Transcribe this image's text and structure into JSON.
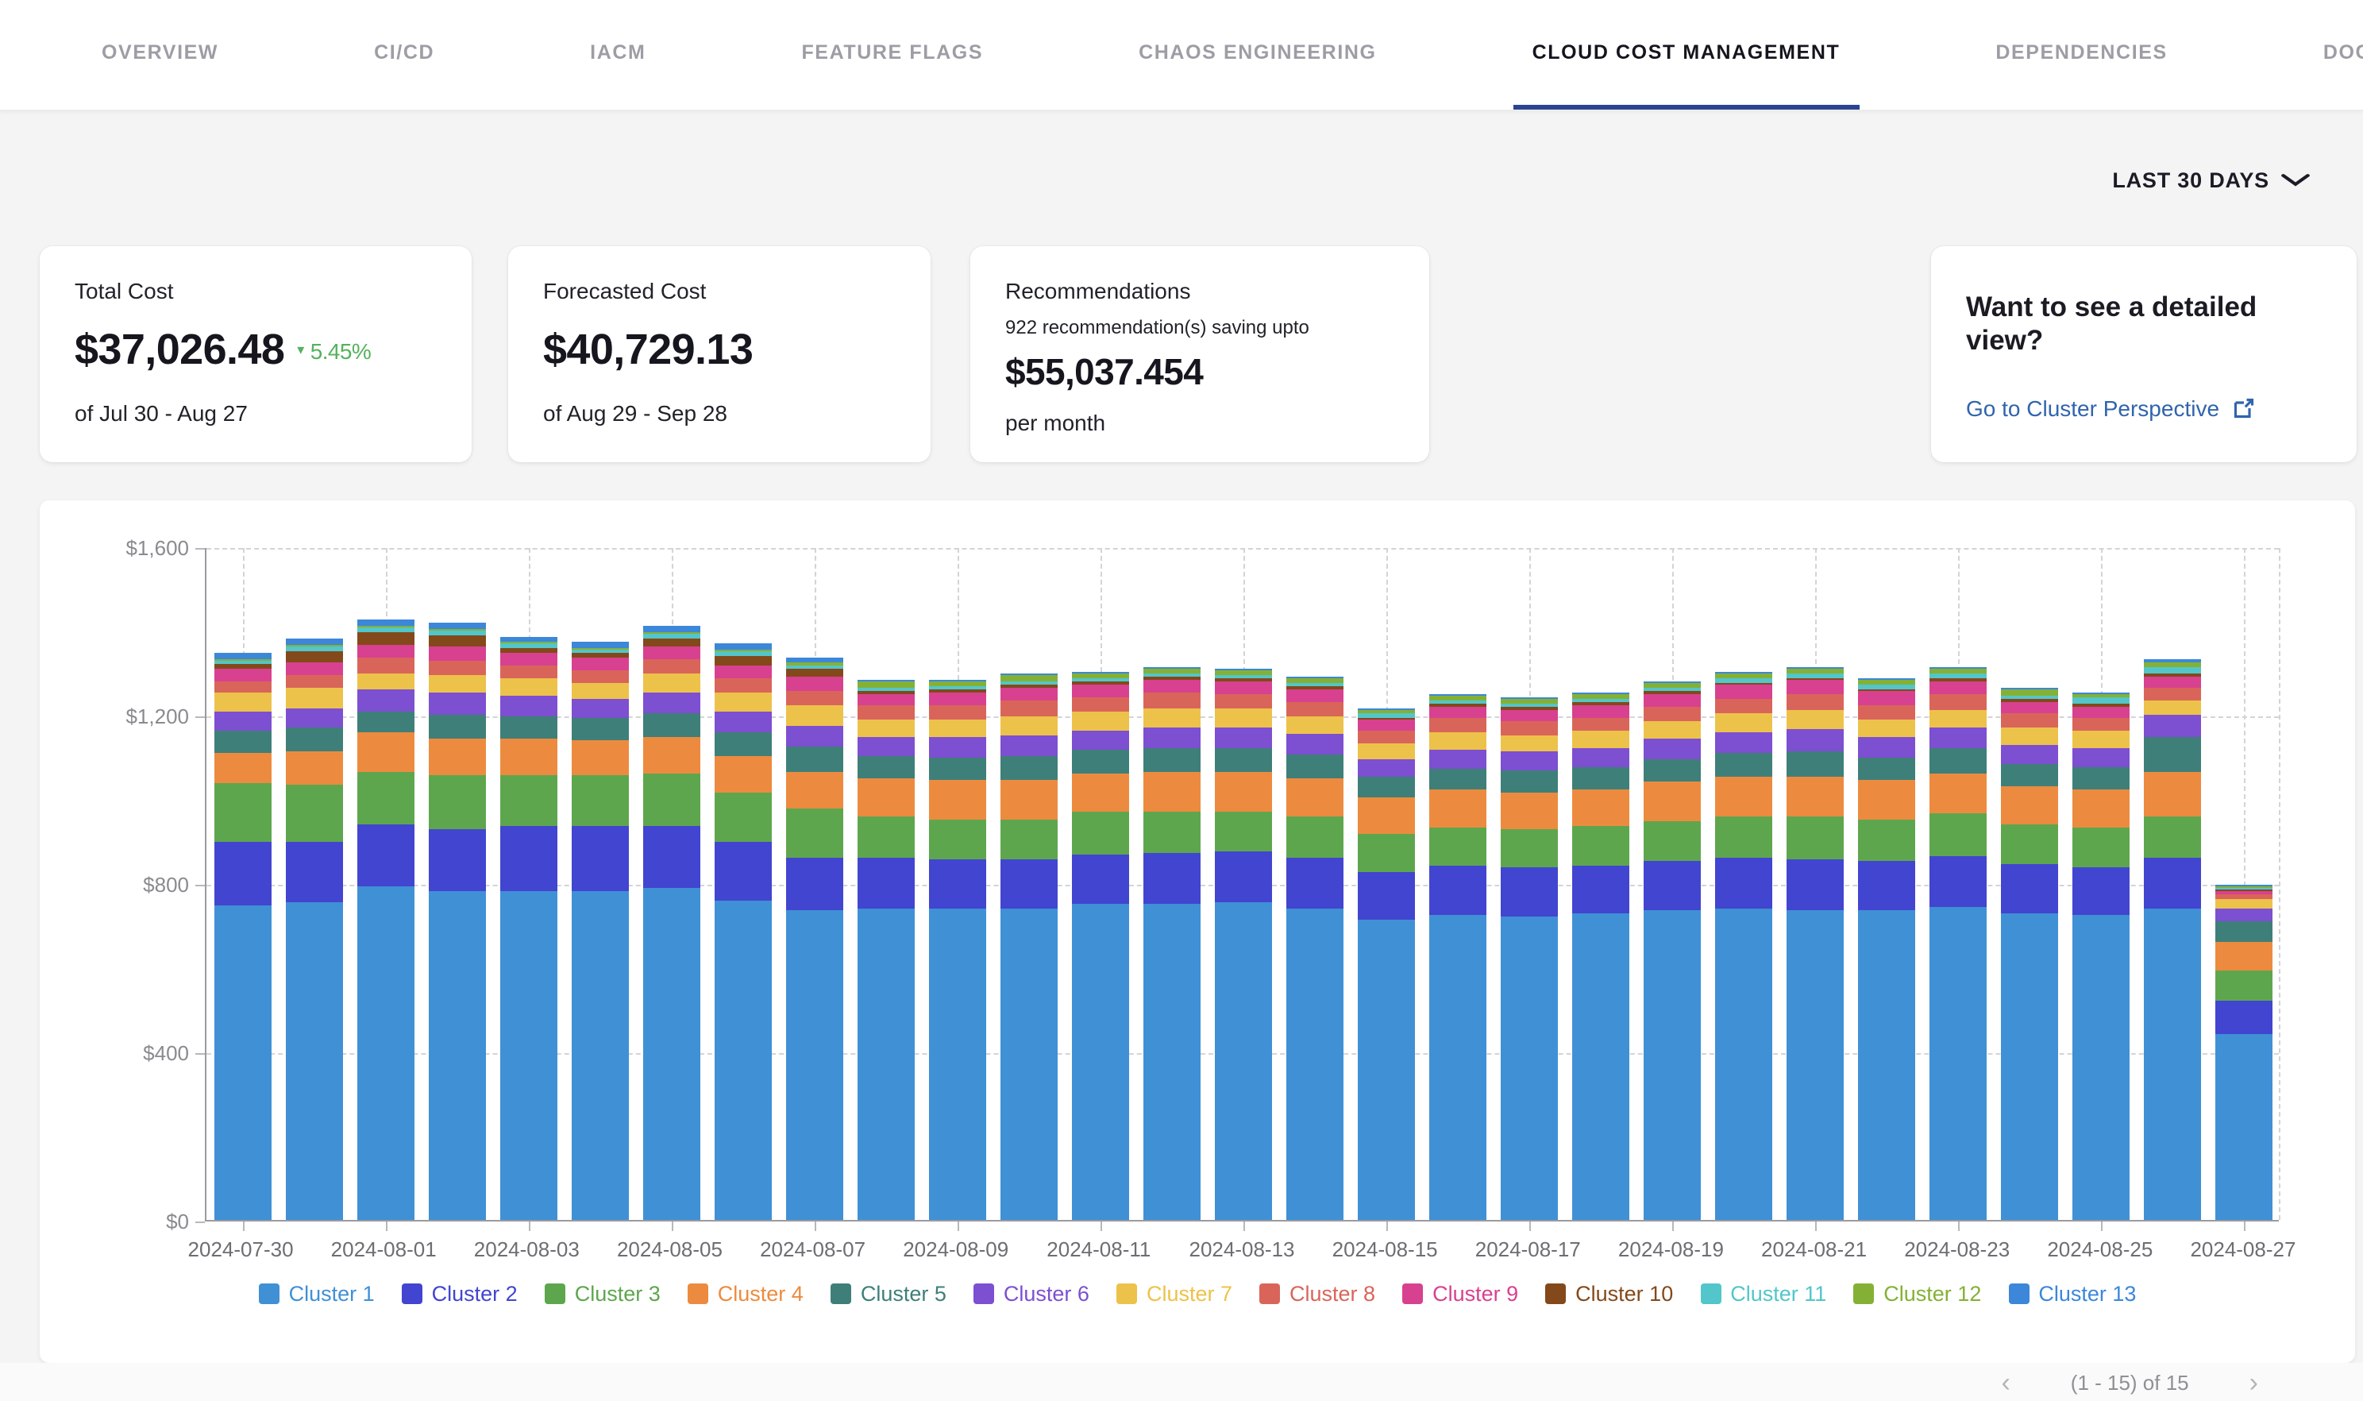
{
  "nav": {
    "tabs": [
      {
        "label": "OVERVIEW",
        "active": false
      },
      {
        "label": "CI/CD",
        "active": false
      },
      {
        "label": "IACM",
        "active": false
      },
      {
        "label": "FEATURE FLAGS",
        "active": false
      },
      {
        "label": "CHAOS ENGINEERING",
        "active": false
      },
      {
        "label": "CLOUD COST MANAGEMENT",
        "active": true
      },
      {
        "label": "DEPENDENCIES",
        "active": false
      },
      {
        "label": "DOCS",
        "active": false
      }
    ]
  },
  "filters": {
    "date_range_label": "LAST 30 DAYS",
    "chevron_icon": "⌄"
  },
  "cards": {
    "total_cost": {
      "label": "Total Cost",
      "value": "$37,026.48",
      "delta": "5.45%",
      "delta_direction": "down",
      "delta_color": "#55b25c",
      "period": "of Jul 30 - Aug 27"
    },
    "forecasted_cost": {
      "label": "Forecasted Cost",
      "value": "$40,729.13",
      "period": "of Aug 29 - Sep 28"
    },
    "recommendations": {
      "label": "Recommendations",
      "note": "922 recommendation(s) saving upto",
      "value": "$55,037.454",
      "suffix": "per month"
    },
    "detail_view": {
      "title": "Want to see a detailed view?",
      "link_label": "Go to Cluster Perspective",
      "link_color": "#3064ad"
    }
  },
  "chart_data": {
    "type": "bar",
    "stacked": true,
    "title": "",
    "xlabel": "",
    "ylabel": "",
    "ylim": [
      0,
      1600
    ],
    "yticks": [
      0,
      400,
      800,
      1200,
      1600
    ],
    "ytick_labels": [
      "$0",
      "$400",
      "$800",
      "$1,200",
      "$1,600"
    ],
    "grid": true,
    "legend_position": "bottom",
    "categories": [
      "2024-07-30",
      "2024-07-31",
      "2024-08-01",
      "2024-08-02",
      "2024-08-03",
      "2024-08-04",
      "2024-08-05",
      "2024-08-06",
      "2024-08-07",
      "2024-08-08",
      "2024-08-09",
      "2024-08-10",
      "2024-08-11",
      "2024-08-12",
      "2024-08-13",
      "2024-08-14",
      "2024-08-15",
      "2024-08-16",
      "2024-08-17",
      "2024-08-18",
      "2024-08-19",
      "2024-08-20",
      "2024-08-21",
      "2024-08-22",
      "2024-08-23",
      "2024-08-24",
      "2024-08-25",
      "2024-08-26",
      "2024-08-27"
    ],
    "label_every": 2,
    "series": [
      {
        "name": "Cluster 1",
        "color": "#4090d6",
        "values": [
          747,
          754,
          792,
          780,
          783,
          783,
          790,
          760,
          735,
          741,
          739,
          739,
          750,
          752,
          754,
          740,
          715,
          725,
          722,
          728,
          735,
          740,
          735,
          735,
          745,
          730,
          725,
          740,
          440
        ]
      },
      {
        "name": "Cluster 2",
        "color": "#4245cf",
        "values": [
          153,
          146,
          149,
          150,
          153,
          154,
          147,
          138,
          127,
          118,
          117,
          117,
          118,
          118,
          120,
          119,
          112,
          115,
          114,
          114,
          117,
          119,
          121,
          118,
          121,
          115,
          114,
          120,
          80
        ]
      },
      {
        "name": "Cluster 3",
        "color": "#5ea64e",
        "values": [
          139,
          133,
          124,
          125,
          120,
          118,
          122,
          118,
          115,
          100,
          96,
          94,
          100,
          98,
          96,
          98,
          90,
          93,
          92,
          94,
          97,
          99,
          101,
          98,
          100,
          94,
          92,
          98,
          73
        ]
      },
      {
        "name": "Cluster 4",
        "color": "#ec8b3f",
        "values": [
          70,
          80,
          92,
          90,
          86,
          84,
          90,
          86,
          88,
          90,
          92,
          96,
          94,
          96,
          95,
          94,
          85,
          88,
          88,
          88,
          92,
          95,
          97,
          93,
          95,
          91,
          90,
          105,
          67
        ]
      },
      {
        "name": "Cluster 5",
        "color": "#3f7f79",
        "values": [
          54,
          56,
          52,
          55,
          54,
          52,
          55,
          56,
          58,
          52,
          54,
          56,
          54,
          56,
          55,
          54,
          50,
          52,
          52,
          52,
          54,
          56,
          60,
          56,
          58,
          54,
          56,
          85,
          50
        ]
      },
      {
        "name": "Cluster 6",
        "color": "#7d4fd1",
        "values": [
          43,
          45,
          50,
          52,
          48,
          46,
          50,
          48,
          50,
          46,
          48,
          50,
          48,
          50,
          49,
          48,
          42,
          45,
          44,
          45,
          47,
          49,
          51,
          47,
          49,
          45,
          44,
          52,
          28
        ]
      },
      {
        "name": "Cluster 7",
        "color": "#edc24a",
        "values": [
          47,
          50,
          41,
          44,
          42,
          40,
          44,
          46,
          48,
          42,
          44,
          46,
          44,
          46,
          45,
          44,
          38,
          41,
          40,
          41,
          43,
          45,
          47,
          43,
          45,
          41,
          40,
          34,
          26
        ]
      },
      {
        "name": "Cluster 8",
        "color": "#d9655a",
        "values": [
          28,
          30,
          35,
          34,
          32,
          30,
          33,
          34,
          36,
          33,
          34,
          36,
          34,
          36,
          35,
          34,
          30,
          32,
          32,
          32,
          34,
          36,
          37,
          34,
          36,
          32,
          31,
          29,
          11
        ]
      },
      {
        "name": "Cluster 9",
        "color": "#d8418f",
        "values": [
          30,
          32,
          30,
          31,
          30,
          29,
          31,
          32,
          33,
          29,
          30,
          32,
          30,
          32,
          31,
          30,
          27,
          29,
          28,
          29,
          31,
          32,
          33,
          31,
          32,
          29,
          28,
          26,
          8
        ]
      },
      {
        "name": "Cluster 10",
        "color": "#84491a",
        "values": [
          8,
          25,
          30,
          28,
          12,
          10,
          20,
          22,
          18,
          6,
          5,
          6,
          6,
          6,
          6,
          6,
          5,
          6,
          6,
          6,
          6,
          6,
          6,
          6,
          6,
          6,
          6,
          10,
          2
        ]
      },
      {
        "name": "Cluster 11",
        "color": "#52c6ca",
        "values": [
          9,
          10,
          11,
          10,
          9,
          9,
          10,
          10,
          10,
          9,
          9,
          9,
          9,
          9,
          9,
          9,
          8,
          9,
          9,
          9,
          9,
          9,
          10,
          9,
          10,
          10,
          14,
          14,
          6
        ]
      },
      {
        "name": "Cluster 12",
        "color": "#84b135",
        "values": [
          5,
          5,
          7,
          6,
          5,
          5,
          6,
          5,
          5,
          13,
          13,
          13,
          13,
          13,
          13,
          13,
          11,
          12,
          12,
          12,
          13,
          13,
          13,
          13,
          13,
          13,
          11,
          11,
          2
        ]
      },
      {
        "name": "Cluster 13",
        "color": "#3c87d9",
        "values": [
          14,
          14,
          13,
          13,
          12,
          12,
          13,
          14,
          12,
          3,
          3,
          3,
          3,
          3,
          3,
          3,
          2,
          3,
          3,
          3,
          3,
          3,
          3,
          3,
          3,
          3,
          3,
          8,
          4
        ]
      }
    ]
  },
  "pagination": {
    "label": "(1 - 15) of 15",
    "prev_icon": "‹",
    "next_icon": "›"
  }
}
